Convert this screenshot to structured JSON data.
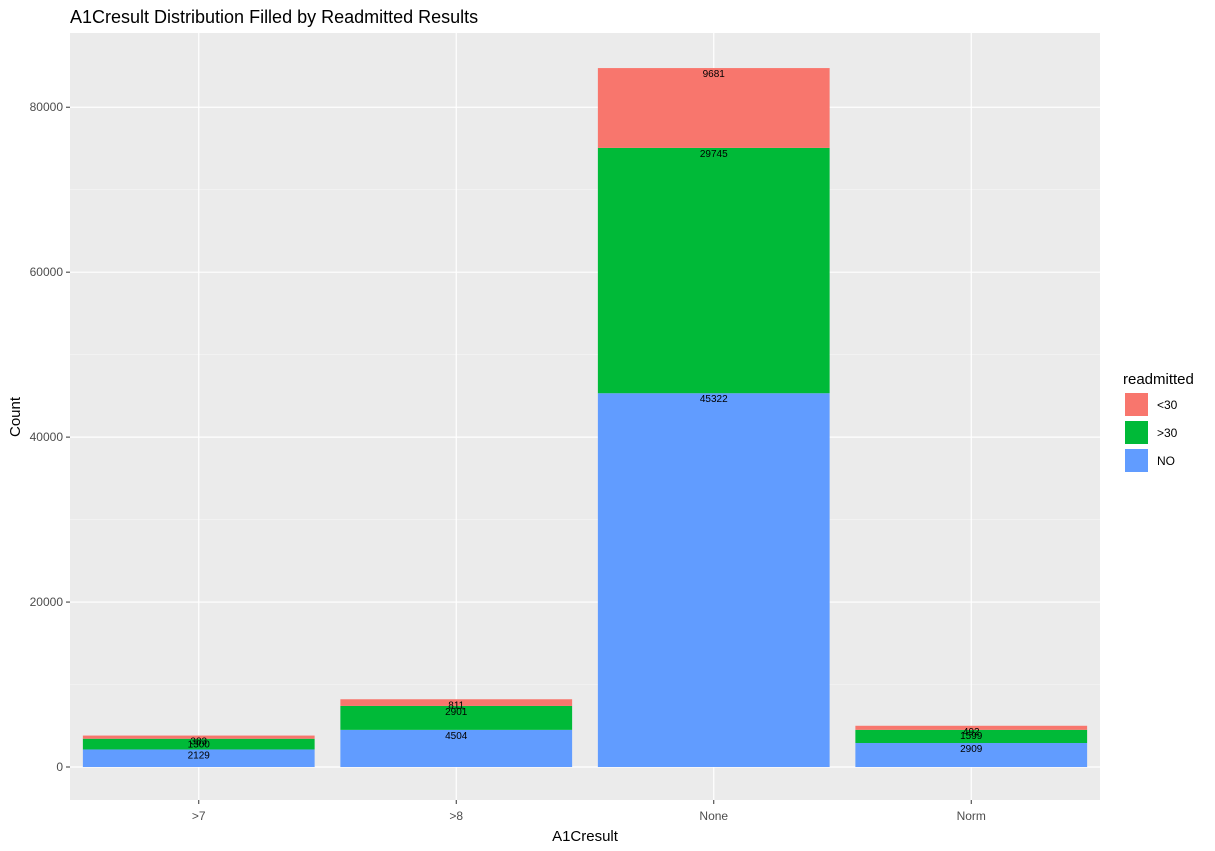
{
  "chart_data": {
    "type": "bar",
    "stacked": true,
    "title": "A1Cresult Distribution Filled by Readmitted Results",
    "xlabel": "A1Cresult",
    "ylabel": "Count",
    "categories": [
      ">7",
      ">8",
      "None",
      "Norm"
    ],
    "yticks": [
      0,
      20000,
      40000,
      60000,
      80000
    ],
    "ytick_labels": [
      "0",
      "20000",
      "40000",
      "60000",
      "80000"
    ],
    "ylim": [
      -4000,
      89000
    ],
    "grid": true,
    "legend": {
      "title": "readmitted",
      "position": "right"
    },
    "series": [
      {
        "name": "<30",
        "color": "#F8766D",
        "values": [
          383,
          811,
          9681,
          492
        ],
        "labels": [
          "383",
          "811",
          "9681",
          "492"
        ]
      },
      {
        "name": ">30",
        "color": "#00BA38",
        "values": [
          1300,
          2901,
          29745,
          1599
        ],
        "labels": [
          "1300",
          "2901",
          "29745",
          "1599"
        ]
      },
      {
        "name": "NO",
        "color": "#619CFF",
        "values": [
          2129,
          4504,
          45322,
          2909
        ],
        "labels": [
          "2129",
          "4504",
          "45322",
          "2909"
        ]
      }
    ]
  },
  "colors": {
    "panel_background": "#EBEBEB",
    "grid_major": "#FFFFFF",
    "grid_minor": "#F5F5F5"
  }
}
